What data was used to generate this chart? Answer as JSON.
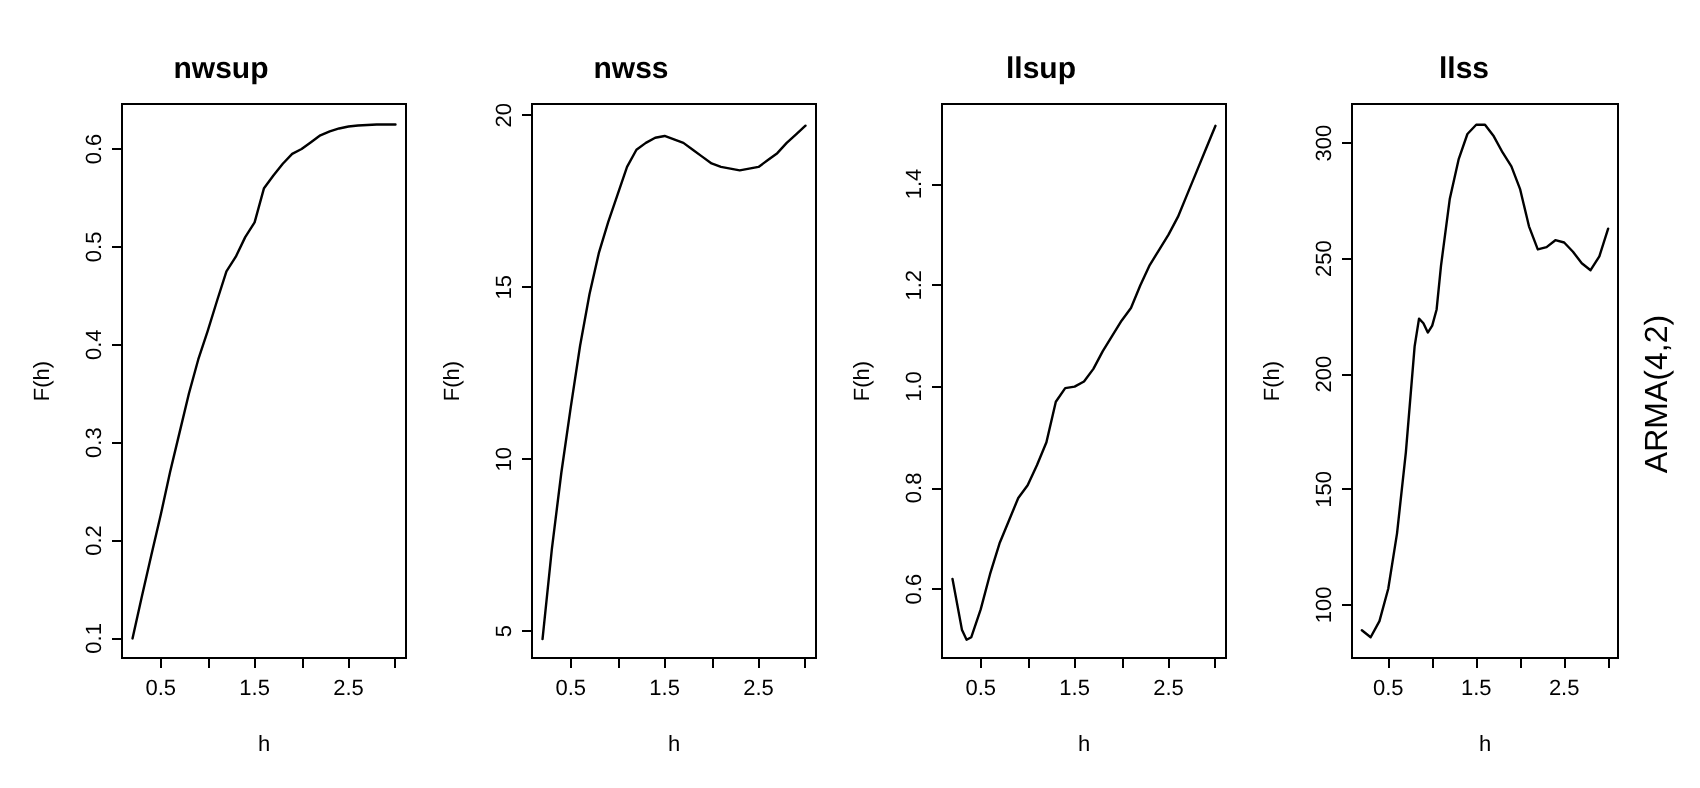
{
  "chart_data": [
    {
      "type": "line",
      "title": "nwsup",
      "xlabel": "h",
      "ylabel": "F(h)",
      "marker": "none",
      "line_style": "solid",
      "grid": false,
      "xlim": [
        0.088,
        3.112
      ],
      "xticks": [
        0.5,
        {
          "value": 1,
          "label": null
        },
        1.5,
        {
          "value": 2,
          "label": null
        },
        2.5,
        {
          "value": 3,
          "label": null
        }
      ],
      "ylim": [
        0.08,
        0.646
      ],
      "yticks": [
        0.1,
        0.2,
        0.3,
        0.4,
        0.5,
        0.6
      ],
      "x": [
        0.2,
        0.3,
        0.4,
        0.5,
        0.6,
        0.7,
        0.8,
        0.9,
        1.0,
        1.1,
        1.2,
        1.3,
        1.4,
        1.5,
        1.6,
        1.7,
        1.8,
        1.9,
        2.0,
        2.1,
        2.2,
        2.3,
        2.4,
        2.5,
        2.6,
        2.8,
        3.0
      ],
      "series": [
        {
          "color": "#000000",
          "values": [
            0.1,
            0.143,
            0.185,
            0.226,
            0.27,
            0.31,
            0.35,
            0.385,
            0.414,
            0.445,
            0.475,
            0.49,
            0.51,
            0.525,
            0.56,
            0.573,
            0.585,
            0.595,
            0.6,
            0.607,
            0.614,
            0.618,
            0.621,
            0.623,
            0.624,
            0.625,
            0.625
          ]
        }
      ]
    },
    {
      "type": "line",
      "title": "nwss",
      "xlabel": "h",
      "ylabel": "F(h)",
      "marker": "none",
      "line_style": "solid",
      "grid": false,
      "xlim": [
        0.088,
        3.112
      ],
      "xticks": [
        0.5,
        {
          "value": 1,
          "label": null
        },
        1.5,
        {
          "value": 2,
          "label": null
        },
        2.5,
        {
          "value": 3,
          "label": null
        }
      ],
      "ylim": [
        4.22,
        20.33
      ],
      "yticks": [
        5,
        10,
        15,
        20
      ],
      "x": [
        0.2,
        0.3,
        0.4,
        0.5,
        0.6,
        0.7,
        0.8,
        0.9,
        1.0,
        1.1,
        1.2,
        1.3,
        1.4,
        1.5,
        1.6,
        1.7,
        1.8,
        1.9,
        2.0,
        2.1,
        2.2,
        2.3,
        2.4,
        2.5,
        2.6,
        2.7,
        2.8,
        2.9,
        3.0
      ],
      "series": [
        {
          "color": "#000000",
          "values": [
            4.77,
            7.4,
            9.6,
            11.5,
            13.3,
            14.8,
            16,
            16.9,
            17.7,
            18.5,
            19,
            19.2,
            19.35,
            19.4,
            19.3,
            19.2,
            19.0,
            18.8,
            18.6,
            18.5,
            18.45,
            18.4,
            18.45,
            18.5,
            18.7,
            18.9,
            19.2,
            19.45,
            19.7
          ]
        }
      ]
    },
    {
      "type": "line",
      "title": "llsup",
      "xlabel": "h",
      "ylabel": "F(h)",
      "marker": "none",
      "line_style": "solid",
      "grid": false,
      "xlim": [
        0.088,
        3.112
      ],
      "xticks": [
        0.5,
        {
          "value": 1,
          "label": null
        },
        1.5,
        {
          "value": 2,
          "label": null
        },
        2.5,
        {
          "value": 3,
          "label": null
        }
      ],
      "ylim": [
        0.464,
        1.558
      ],
      "yticks": [
        0.6,
        0.8,
        {
          "value": 1,
          "label": "1.0"
        },
        1.2,
        1.4
      ],
      "x": [
        0.2,
        0.3,
        0.35,
        0.4,
        0.5,
        0.6,
        0.7,
        0.8,
        0.9,
        1.0,
        1.1,
        1.2,
        1.3,
        1.4,
        1.5,
        1.6,
        1.7,
        1.8,
        1.9,
        2.0,
        2.1,
        2.2,
        2.3,
        2.4,
        2.5,
        2.6,
        2.7,
        2.8,
        2.9,
        3.0
      ],
      "series": [
        {
          "color": "#000000",
          "values": [
            0.62,
            0.52,
            0.5,
            0.505,
            0.56,
            0.63,
            0.69,
            0.735,
            0.78,
            0.805,
            0.845,
            0.89,
            0.97,
            0.997,
            1.0,
            1.01,
            1.035,
            1.07,
            1.1,
            1.13,
            1.155,
            1.2,
            1.24,
            1.27,
            1.3,
            1.335,
            1.38,
            1.425,
            1.47,
            1.515
          ]
        }
      ]
    },
    {
      "type": "line",
      "title": "llss",
      "xlabel": "h",
      "ylabel": "F(h)",
      "marker": "none",
      "line_style": "solid",
      "grid": false,
      "annotations": [
        "ARMA(4,2)"
      ],
      "xlim": [
        0.088,
        3.112
      ],
      "xticks": [
        0.5,
        {
          "value": 1,
          "label": null
        },
        1.5,
        {
          "value": 2,
          "label": null
        },
        2.5,
        {
          "value": 3,
          "label": null
        }
      ],
      "ylim": [
        77,
        317
      ],
      "yticks": [
        100,
        150,
        200,
        250,
        300
      ],
      "x": [
        0.2,
        0.3,
        0.4,
        0.5,
        0.6,
        0.7,
        0.8,
        0.85,
        0.9,
        0.95,
        1.0,
        1.05,
        1.1,
        1.2,
        1.3,
        1.4,
        1.5,
        1.6,
        1.7,
        1.8,
        1.9,
        2.0,
        2.1,
        2.2,
        2.3,
        2.4,
        2.5,
        2.6,
        2.7,
        2.8,
        2.9,
        3.0
      ],
      "series": [
        {
          "color": "#000000",
          "values": [
            89,
            86,
            93,
            107,
            131,
            166,
            212,
            224,
            222,
            218,
            221,
            228,
            247,
            276,
            293,
            304,
            308,
            308,
            303,
            296,
            290,
            280,
            264,
            254,
            255,
            258,
            257,
            253,
            248,
            245,
            251,
            263
          ]
        }
      ]
    }
  ]
}
